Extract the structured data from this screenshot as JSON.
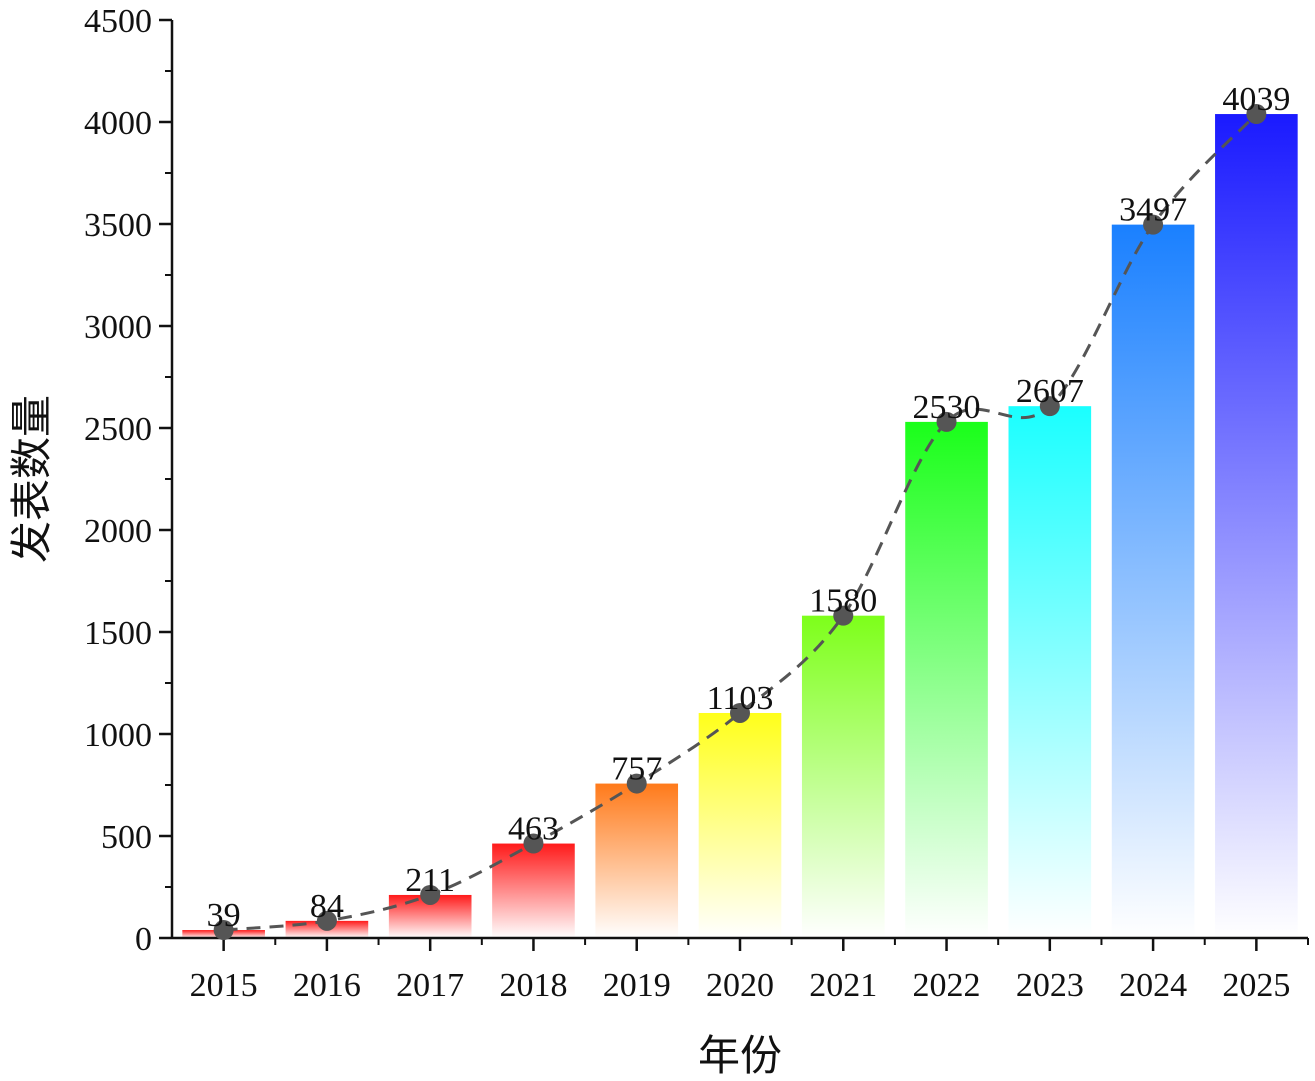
{
  "chart_data": {
    "type": "bar",
    "title": "",
    "xlabel": "年份",
    "ylabel": "发表数量",
    "categories": [
      "2015",
      "2016",
      "2017",
      "2018",
      "2019",
      "2020",
      "2021",
      "2022",
      "2023",
      "2024",
      "2025"
    ],
    "values": [
      39,
      84,
      211,
      463,
      757,
      1103,
      1580,
      2530,
      2607,
      3497,
      4039
    ],
    "bar_colors": [
      "#ff1a1a",
      "#ff1a1a",
      "#ff1a1a",
      "#ff1a1a",
      "#ff7a1a",
      "#ffff1a",
      "#7dff1a",
      "#1aff1a",
      "#1affff",
      "#1a80ff",
      "#1a1aff"
    ],
    "ylim": [
      0,
      4500
    ],
    "yticks": [
      0,
      500,
      1000,
      1500,
      2000,
      2500,
      3000,
      3500,
      4000,
      4500
    ],
    "overlay": {
      "type": "line",
      "style": "dashed",
      "marker": "circle",
      "color": "#555555"
    },
    "grid": false
  }
}
